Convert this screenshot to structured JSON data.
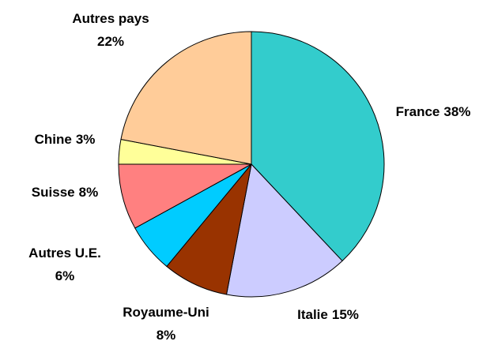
{
  "chart_data": {
    "type": "pie",
    "categories": [
      "France",
      "Italie",
      "Royaume-Uni",
      "Autres U.E.",
      "Suisse",
      "Chine",
      "Autres pays"
    ],
    "values": [
      38,
      15,
      8,
      6,
      8,
      3,
      22
    ],
    "value_labels": [
      "38%",
      "15%",
      "8%",
      "6%",
      "8%",
      "3%",
      "22%"
    ],
    "colors": [
      "#33cccc",
      "#ccccff",
      "#993300",
      "#00ccff",
      "#ff8080",
      "#ffff99",
      "#ffcc99"
    ]
  }
}
